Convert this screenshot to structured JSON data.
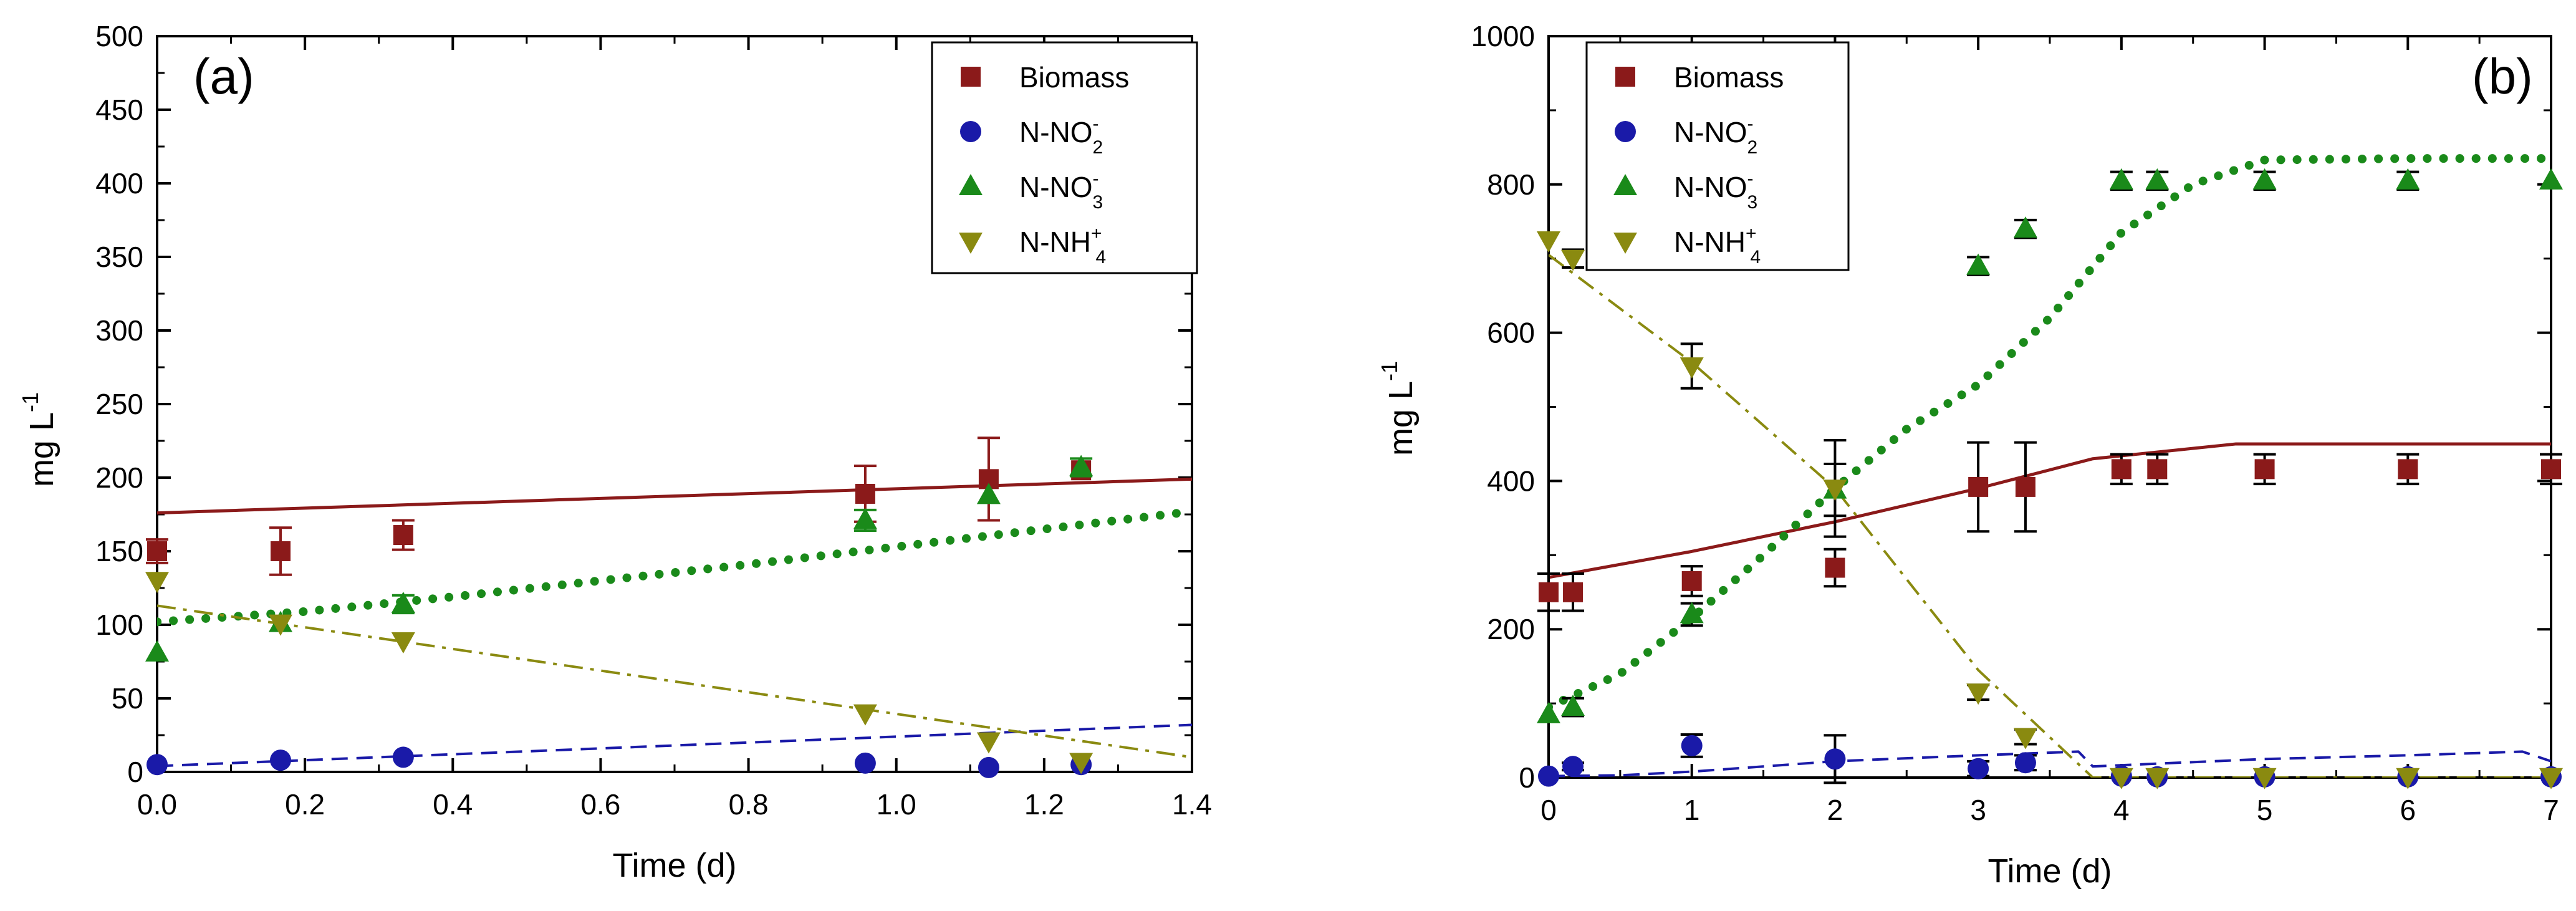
{
  "colors": {
    "biomass": "#8b1a1a",
    "nitrite": "#1a1aa8",
    "nitrate": "#1a8a1a",
    "ammonium": "#8a8a10",
    "axis": "#000000",
    "errorbar": "#000000"
  },
  "chart_data": [
    {
      "type": "scatter",
      "panel_label": "(a)",
      "xlabel": "Time (d)",
      "ylabel_main": "mg L",
      "ylabel_sup": "-1",
      "xlim": [
        0,
        1.4
      ],
      "ylim": [
        0,
        500
      ],
      "xticks": [
        0,
        0.2,
        0.4,
        0.6,
        0.8,
        1.0,
        1.2,
        1.4
      ],
      "xtick_labels": [
        "0.0",
        "0.2",
        "0.4",
        "0.6",
        "0.8",
        "1.0",
        "1.2",
        "1.4"
      ],
      "yticks": [
        0,
        50,
        100,
        150,
        200,
        250,
        300,
        350,
        400,
        450,
        500
      ],
      "ytick_labels": [
        "0",
        "50",
        "100",
        "150",
        "200",
        "250",
        "300",
        "350",
        "400",
        "450",
        "500"
      ],
      "legend_position": "top-right",
      "legend": [
        {
          "key": "biomass",
          "marker": "square",
          "main": "Biomass",
          "sub": "",
          "sup": ""
        },
        {
          "key": "nitrite",
          "marker": "circle",
          "main": "N-NO",
          "sub": "2",
          "sup": "-"
        },
        {
          "key": "nitrate",
          "marker": "triangle-up",
          "main": "N-NO",
          "sub": "3",
          "sup": "-"
        },
        {
          "key": "ammonium",
          "marker": "triangle-down",
          "main": "N-NH",
          "sub": "4",
          "sup": "+"
        }
      ],
      "series": [
        {
          "key": "biomass",
          "marker": "square",
          "errcolor": "biomass",
          "x": [
            0.0,
            0.167,
            0.333,
            0.958,
            1.125,
            1.25
          ],
          "y": [
            150,
            150,
            161,
            189,
            199,
            205
          ],
          "err": [
            8,
            16,
            10,
            19,
            28,
            0
          ]
        },
        {
          "key": "nitrite",
          "marker": "circle",
          "errcolor": "nitrite",
          "x": [
            0.0,
            0.167,
            0.333,
            0.958,
            1.125,
            1.25
          ],
          "y": [
            5,
            8,
            10,
            6,
            3,
            5
          ],
          "err": [
            0,
            0,
            0,
            0,
            0,
            0
          ]
        },
        {
          "key": "nitrate",
          "marker": "triangle-up",
          "errcolor": "nitrate",
          "x": [
            0.0,
            0.167,
            0.333,
            0.958,
            1.125,
            1.25
          ],
          "y": [
            81,
            101,
            114,
            171,
            188,
            207
          ],
          "err": [
            0,
            0,
            6,
            7,
            0,
            6
          ]
        },
        {
          "key": "ammonium",
          "marker": "triangle-down",
          "errcolor": "ammonium",
          "x": [
            0.0,
            0.167,
            0.333,
            0.958,
            1.125,
            1.25
          ],
          "y": [
            130,
            101,
            89,
            40,
            21,
            7
          ],
          "err": [
            0,
            0,
            0,
            0,
            0,
            0
          ]
        }
      ],
      "model_lines": [
        {
          "key": "biomass",
          "style": "solid",
          "x": [
            0,
            1.4
          ],
          "y": [
            176,
            199
          ]
        },
        {
          "key": "nitrite",
          "style": "dash",
          "x": [
            0,
            1.4
          ],
          "y": [
            4,
            32
          ]
        },
        {
          "key": "nitrate",
          "style": "dot",
          "x": [
            0,
            0.2,
            0.4,
            0.6,
            0.8,
            1.0,
            1.2,
            1.4
          ],
          "y": [
            102,
            109,
            119,
            130,
            141,
            153,
            165,
            177
          ]
        },
        {
          "key": "ammonium",
          "style": "dashdot",
          "x": [
            0,
            1.4
          ],
          "y": [
            113,
            10
          ]
        }
      ]
    },
    {
      "type": "scatter",
      "panel_label": "(b)",
      "xlabel": "Time (d)",
      "ylabel_main": "mg L",
      "ylabel_sup": "-1",
      "xlim": [
        0,
        7
      ],
      "ylim": [
        0,
        1000
      ],
      "xticks": [
        0,
        1,
        2,
        3,
        4,
        5,
        6,
        7
      ],
      "xtick_labels": [
        "0",
        "1",
        "2",
        "3",
        "4",
        "5",
        "6",
        "7"
      ],
      "yticks": [
        0,
        200,
        400,
        600,
        800,
        1000
      ],
      "ytick_labels": [
        "0",
        "200",
        "400",
        "600",
        "800",
        "1000"
      ],
      "legend_position": "top-left",
      "legend": [
        {
          "key": "biomass",
          "marker": "square",
          "main": "Biomass",
          "sub": "",
          "sup": ""
        },
        {
          "key": "nitrite",
          "marker": "circle",
          "main": "N-NO",
          "sub": "2",
          "sup": "-"
        },
        {
          "key": "nitrate",
          "marker": "triangle-up",
          "main": "N-NO",
          "sub": "3",
          "sup": "-"
        },
        {
          "key": "ammonium",
          "marker": "triangle-down",
          "main": "N-NH",
          "sub": "4",
          "sup": "+"
        }
      ],
      "series": [
        {
          "key": "biomass",
          "marker": "square",
          "errcolor": "errorbar",
          "x": [
            0,
            0.17,
            1,
            2,
            3,
            3.33,
            4,
            4.25,
            5,
            6,
            7
          ],
          "y": [
            250,
            250,
            265,
            283,
            392,
            392,
            416,
            416,
            416,
            416,
            416
          ],
          "err": [
            25,
            25,
            20,
            25,
            60,
            60,
            20,
            20,
            20,
            20,
            20
          ]
        },
        {
          "key": "nitrite",
          "marker": "circle",
          "errcolor": "errorbar",
          "x": [
            0,
            0.17,
            1,
            2,
            3,
            3.33,
            4,
            4.25,
            5,
            6,
            7
          ],
          "y": [
            2,
            15,
            43,
            25,
            12,
            20,
            2,
            1,
            1,
            1,
            1
          ],
          "err": [
            0,
            5,
            15,
            32,
            10,
            10,
            0,
            0,
            0,
            0,
            0
          ]
        },
        {
          "key": "nitrate",
          "marker": "triangle-up",
          "errcolor": "errorbar",
          "x": [
            0,
            0.17,
            1,
            2,
            3,
            3.33,
            4,
            4.25,
            5,
            6,
            7
          ],
          "y": [
            85,
            95,
            220,
            388,
            690,
            740,
            805,
            805,
            805,
            805,
            805
          ],
          "err": [
            0,
            12,
            15,
            35,
            12,
            12,
            12,
            12,
            12,
            12,
            0
          ]
        },
        {
          "key": "ammonium",
          "marker": "triangle-down",
          "errcolor": "errorbar",
          "x": [
            0,
            0.17,
            1,
            2,
            3,
            3.33,
            4,
            4.25,
            5,
            6,
            7
          ],
          "y": [
            725,
            700,
            555,
            390,
            115,
            55,
            1,
            1,
            1,
            1,
            1
          ],
          "err": [
            0,
            12,
            30,
            65,
            10,
            10,
            0,
            0,
            0,
            0,
            0
          ]
        }
      ],
      "model_lines": [
        {
          "key": "biomass",
          "style": "solid",
          "x": [
            0,
            1,
            2,
            3,
            3.8,
            4.8,
            7
          ],
          "y": [
            270,
            305,
            345,
            390,
            430,
            450,
            450
          ]
        },
        {
          "key": "nitrite",
          "style": "dash",
          "x": [
            0,
            0.5,
            1,
            2,
            3,
            3.7,
            3.8,
            5,
            6,
            6.8,
            7
          ],
          "y": [
            2,
            3,
            8,
            22,
            30,
            35,
            15,
            25,
            30,
            35,
            22
          ]
        },
        {
          "key": "nitrate",
          "style": "dot",
          "x": [
            0,
            0.5,
            1,
            1.5,
            2,
            2.5,
            3,
            3.5,
            4,
            4.5,
            5,
            6,
            7
          ],
          "y": [
            95,
            140,
            215,
            300,
            390,
            470,
            530,
            620,
            735,
            800,
            833,
            835,
            835
          ]
        },
        {
          "key": "ammonium",
          "style": "dashdot",
          "x": [
            0,
            1,
            2,
            3,
            3.8,
            4,
            7
          ],
          "y": [
            705,
            560,
            390,
            145,
            0,
            0,
            0
          ]
        }
      ]
    }
  ]
}
